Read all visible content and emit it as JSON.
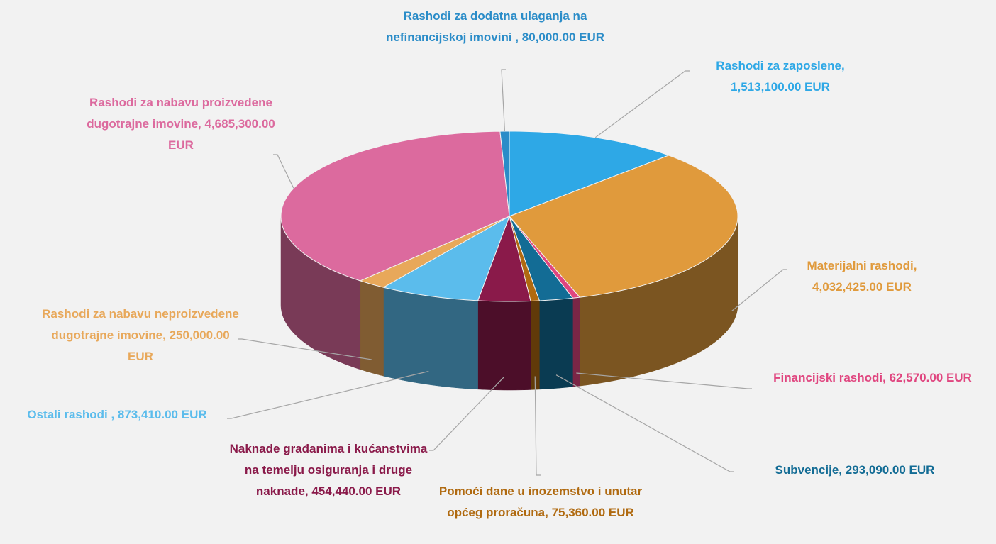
{
  "chart_data": {
    "type": "pie",
    "categories": [
      "Rashodi za zaposlene,",
      "Materijalni rashodi,",
      "Financijski rashodi,",
      "Subvencije,",
      "Pomoći dane u inozemstvo i unutar općeg proračuna,",
      "Naknade građanima i kućanstvima na temelju osiguranja i druge naknade,",
      "Ostali rashodi ,",
      "Rashodi za nabavu neproizvedene dugotrajne imovine,",
      "Rashodi za nabavu proizvedene dugotrajne imovine,",
      "Rashodi za dodatna ulaganja na nefinancijskoj imovini ,"
    ],
    "values": [
      1513100,
      4032425,
      62570,
      293090,
      75360,
      454440,
      873410,
      250000,
      4685300,
      80000
    ],
    "value_labels": [
      "1,513,100.00 EUR",
      "4,032,425.00 EUR",
      "62,570.00 EUR",
      "293,090.00 EUR",
      "75,360.00 EUR",
      "454,440.00 EUR",
      "873,410.00 EUR",
      "250,000.00 EUR",
      "4,685,300.00 EUR",
      "80,000.00 EUR"
    ],
    "colors": [
      "#2ea8e6",
      "#e09a3c",
      "#e0457f",
      "#136c95",
      "#b06a10",
      "#8a1a4a",
      "#5bbcec",
      "#e8a85a",
      "#dc6a9e",
      "#2a8cc8"
    ]
  }
}
